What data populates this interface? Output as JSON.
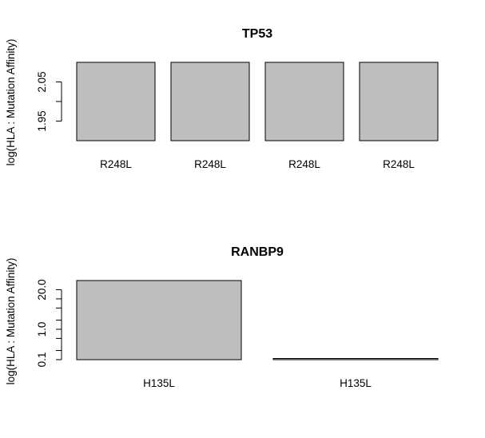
{
  "chart_data": [
    {
      "type": "bar",
      "title": "TP53",
      "ylabel": "log(HLA : Mutation Affinity)",
      "xlabel": "",
      "categories": [
        "R248L",
        "R248L",
        "R248L",
        "R248L"
      ],
      "values": [
        2.1,
        2.1,
        2.1,
        2.1
      ],
      "ylim": [
        1.9,
        2.1
      ],
      "yscale": "linear",
      "yticks": [
        1.95,
        2.0,
        2.05
      ],
      "ytick_labels": [
        "1.95",
        "",
        "2.05"
      ],
      "bar_color": "#bebebe",
      "grid": false,
      "legend": false
    },
    {
      "type": "bar",
      "title": "RANBP9",
      "ylabel": "log(HLA : Mutation Affinity)",
      "xlabel": "",
      "categories": [
        "H135L",
        "H135L"
      ],
      "values": [
        40.0,
        0.1
      ],
      "ylim": [
        0.1,
        40.0
      ],
      "yscale": "log",
      "yticks": [
        0.1,
        0.2,
        0.5,
        1.0,
        2.0,
        5.0,
        10.0,
        20.0
      ],
      "ytick_labels": [
        "0.1",
        "",
        "",
        "1.0",
        "",
        "",
        "",
        "20.0"
      ],
      "bar_color": "#bebebe",
      "grid": false,
      "legend": false
    }
  ]
}
